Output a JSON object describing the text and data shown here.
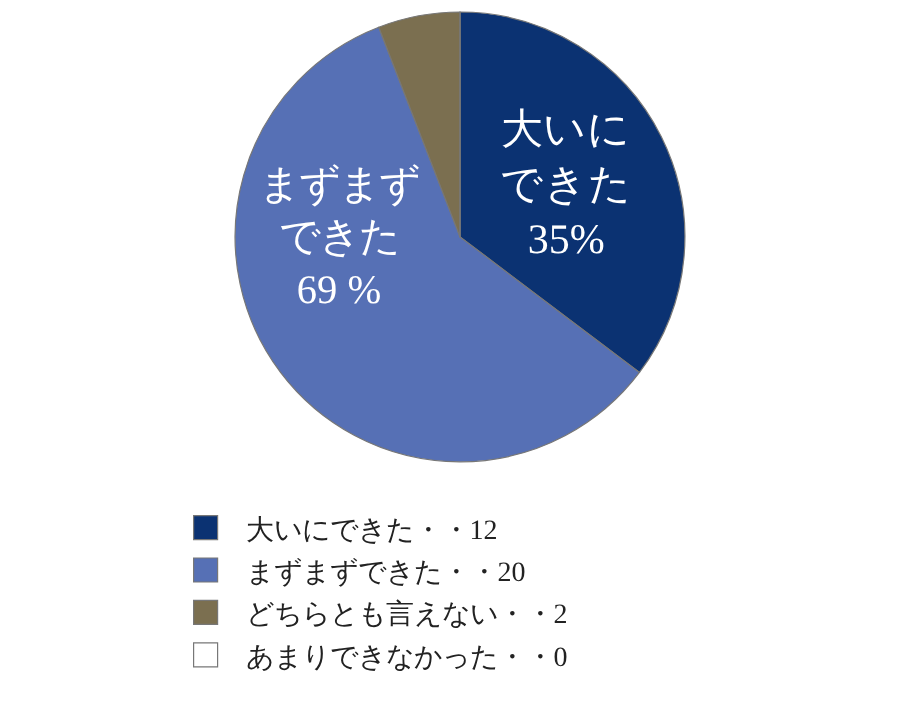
{
  "chart_data": {
    "type": "pie",
    "categories": [
      "大いにできた・・12",
      "まずまずできた・・20",
      "どちらとも言えない・・2",
      "あまりできなかった・・0"
    ],
    "values": [
      12,
      20,
      2,
      0
    ],
    "colors": [
      "#0b3272",
      "#5670b5",
      "#7b6f50",
      "#ffffff"
    ],
    "value_labels": [
      "大いにできた35%",
      "まずまずできた69 %",
      null,
      null
    ],
    "legend": "bottom left"
  }
}
